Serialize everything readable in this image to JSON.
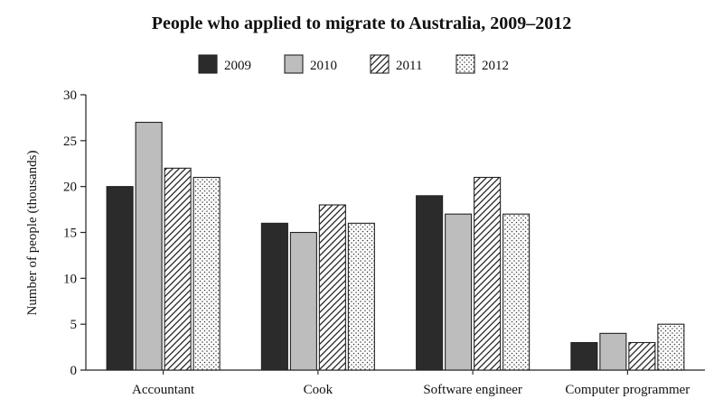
{
  "chart_data": {
    "type": "bar",
    "title": "People who applied to migrate to Australia, 2009–2012",
    "xlabel": "",
    "ylabel": "Number of people (thousands)",
    "ylim": [
      0,
      30
    ],
    "yticks": [
      0,
      5,
      10,
      15,
      20,
      25,
      30
    ],
    "grid": false,
    "legend_position": "top",
    "categories": [
      "Accountant",
      "Cook",
      "Software engineer",
      "Computer programmer"
    ],
    "series": [
      {
        "name": "2009",
        "fill": "solid",
        "color": "#2b2b2b",
        "values": [
          20,
          16,
          19,
          3
        ]
      },
      {
        "name": "2010",
        "fill": "solid",
        "color": "#bdbdbd",
        "values": [
          27,
          15,
          17,
          4
        ]
      },
      {
        "name": "2011",
        "fill": "diagonal-hatch",
        "color": "#ffffff",
        "values": [
          22,
          18,
          21,
          3
        ]
      },
      {
        "name": "2012",
        "fill": "dotted",
        "color": "#ffffff",
        "values": [
          21,
          16,
          17,
          5
        ]
      }
    ]
  }
}
